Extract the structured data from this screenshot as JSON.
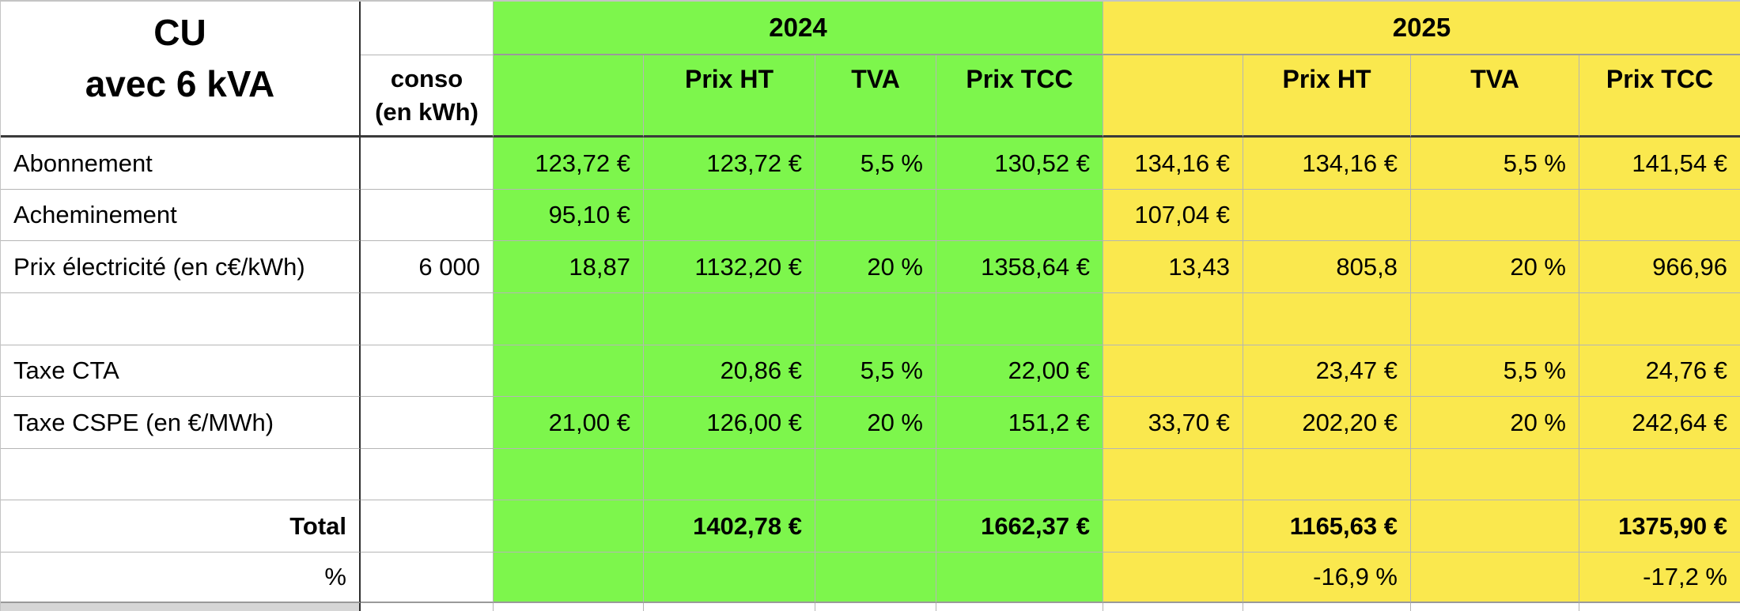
{
  "title": "CU\navec 6 kVA",
  "conso_header": "conso\n(en kWh)",
  "sections": {
    "y2024": {
      "year": "2024",
      "prix_ht": "Prix HT",
      "tva": "TVA",
      "prix_tcc": "Prix TCC"
    },
    "y2025": {
      "year": "2025",
      "prix_ht": "Prix HT",
      "tva": "TVA",
      "prix_tcc": "Prix TCC"
    }
  },
  "colors": {
    "green_2024": "#7DF64C",
    "yellow_2025": "#FAE84E",
    "grid_line": "#B5B5B5",
    "dark_line": "#3A3A3A",
    "partial_row_gray": "#D6D6D6"
  },
  "rows": [
    {
      "label": "Abonnement",
      "cells": [
        "",
        "123,72 €",
        "123,72 €",
        "5,5 %",
        "130,52 €",
        "134,16 €",
        "134,16 €",
        "5,5 %",
        "141,54 €"
      ]
    },
    {
      "label": "Acheminement",
      "cells": [
        "",
        "95,10 €",
        "",
        "",
        "",
        "107,04 €",
        "",
        "",
        ""
      ]
    },
    {
      "label": "Prix électricité (en c€/kWh)",
      "cells": [
        "6 000",
        "18,87",
        "1132,20 €",
        "20 %",
        "1358,64 €",
        "13,43",
        "805,8",
        "20 %",
        "966,96"
      ]
    },
    {
      "label": "",
      "cells": [
        "",
        "",
        "",
        "",
        "",
        "",
        "",
        "",
        ""
      ]
    },
    {
      "label": "Taxe CTA",
      "cells": [
        "",
        "",
        "20,86 €",
        "5,5 %",
        "22,00 €",
        "",
        "23,47 €",
        "5,5 %",
        "24,76 €"
      ]
    },
    {
      "label": "Taxe CSPE (en €/MWh)",
      "cells": [
        "",
        "21,00 €",
        "126,00 €",
        "20 %",
        "151,2 €",
        "33,70 €",
        "202,20 €",
        "20 %",
        "242,64 €"
      ]
    },
    {
      "label": "",
      "cells": [
        "",
        "",
        "",
        "",
        "",
        "",
        "",
        "",
        ""
      ]
    },
    {
      "label": "Total",
      "cells": [
        "",
        "",
        "1402,78 €",
        "",
        "1662,37 €",
        "",
        "1165,63 €",
        "",
        "1375,90 €"
      ]
    },
    {
      "label": "%",
      "cells": [
        "",
        "",
        "",
        "",
        "",
        "",
        "-16,9 %",
        "",
        "-17,2 %"
      ]
    }
  ]
}
